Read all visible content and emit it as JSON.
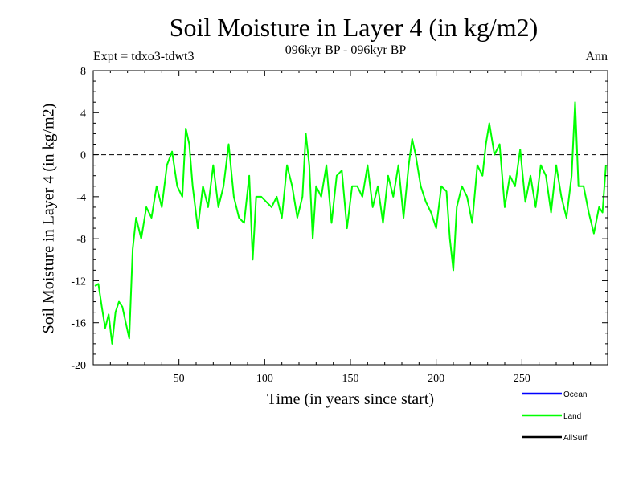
{
  "chart_data": {
    "type": "line",
    "title": "Soil Moisture in Layer 4 (in kg/m2)",
    "subtitle": "096kyr BP - 096kyr BP",
    "experiment": "Expt = tdxo3-tdwt3",
    "period": "Ann",
    "xlabel": "Time (in years since start)",
    "ylabel": "Soil Moisture in Layer 4 (in kg/m2)",
    "xlim": [
      0,
      300
    ],
    "ylim": [
      -20,
      8
    ],
    "xticks": [
      50,
      100,
      150,
      200,
      250
    ],
    "yticks": [
      -20,
      -16,
      -12,
      -8,
      -4,
      0,
      4,
      8
    ],
    "reference_line": 0,
    "legend": [
      {
        "name": "Ocean",
        "color": "#0000ff"
      },
      {
        "name": "Land",
        "color": "#00ff00"
      },
      {
        "name": "AllSurf",
        "color": "#000000"
      }
    ],
    "series": [
      {
        "name": "Land",
        "color": "#00ff00",
        "x": [
          1,
          3,
          5,
          7,
          9,
          11,
          13,
          15,
          17,
          19,
          21,
          23,
          25,
          28,
          31,
          34,
          37,
          40,
          43,
          46,
          49,
          52,
          54,
          56,
          58,
          61,
          64,
          67,
          70,
          73,
          76,
          79,
          82,
          85,
          88,
          91,
          93,
          95,
          98,
          101,
          104,
          107,
          110,
          113,
          116,
          119,
          122,
          124,
          126,
          128,
          130,
          133,
          136,
          139,
          142,
          145,
          148,
          151,
          154,
          157,
          160,
          163,
          166,
          169,
          172,
          175,
          178,
          181,
          184,
          186,
          188,
          191,
          194,
          197,
          200,
          203,
          206,
          208,
          210,
          212,
          215,
          218,
          221,
          224,
          227,
          229,
          231,
          234,
          237,
          240,
          243,
          246,
          249,
          252,
          255,
          258,
          261,
          264,
          267,
          270,
          273,
          276,
          279,
          281,
          283,
          286,
          289,
          292,
          295,
          297,
          299
        ],
        "y": [
          -12.5,
          -12.3,
          -14.5,
          -16.5,
          -15.2,
          -18,
          -15,
          -14,
          -14.5,
          -16,
          -17.5,
          -9,
          -6,
          -8,
          -5,
          -6,
          -3,
          -5,
          -1,
          0.3,
          -3,
          -4,
          2.5,
          1,
          -3,
          -7,
          -3,
          -5,
          -1,
          -5,
          -3,
          1,
          -4,
          -6,
          -6.5,
          -2,
          -10,
          -4,
          -4,
          -4.5,
          -5,
          -4,
          -6,
          -1,
          -3,
          -6,
          -4,
          2,
          -1,
          -8,
          -3,
          -4,
          -1,
          -6.5,
          -2,
          -1.5,
          -7,
          -3,
          -3,
          -4,
          -1,
          -5,
          -3,
          -6.5,
          -2,
          -4,
          -1,
          -6,
          -1,
          1.5,
          0,
          -3,
          -4.5,
          -5.5,
          -7,
          -3,
          -3.5,
          -8,
          -11,
          -5,
          -3,
          -4,
          -6.5,
          -1,
          -2,
          1,
          3,
          0,
          1,
          -5,
          -2,
          -3,
          0.5,
          -4.5,
          -2,
          -5,
          -1,
          -2,
          -5.5,
          -1,
          -4,
          -6,
          -2,
          5,
          -3,
          -3,
          -5.5,
          -7.5,
          -5,
          -5.5,
          -1
        ]
      }
    ]
  }
}
